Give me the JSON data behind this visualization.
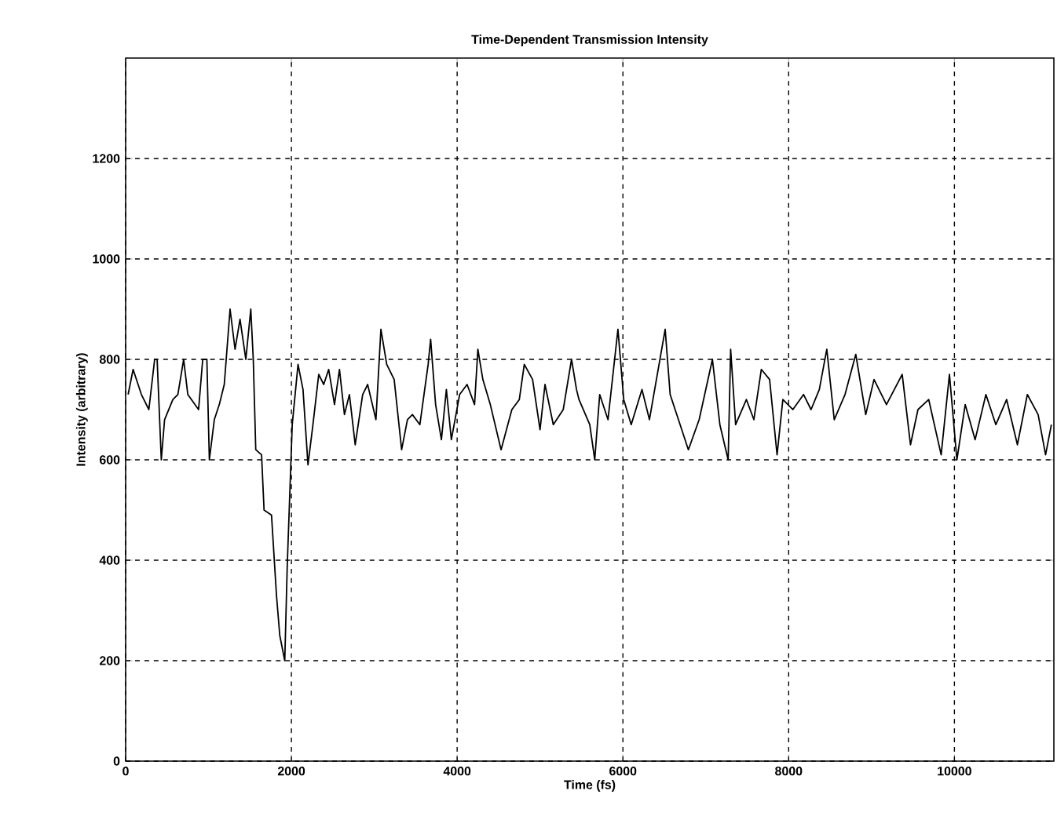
{
  "chart_data": {
    "type": "line",
    "title": "Time-Dependent Transmission Intensity",
    "xlabel": "Time (fs)",
    "ylabel": "Intensity (arbitrary)",
    "x": [
      30,
      90,
      190,
      280,
      350,
      380,
      430,
      470,
      570,
      630,
      700,
      750,
      880,
      930,
      980,
      1010,
      1070,
      1130,
      1190,
      1260,
      1320,
      1380,
      1450,
      1510,
      1540,
      1570,
      1640,
      1670,
      1760,
      1820,
      1860,
      1920,
      1950,
      2010,
      2080,
      2140,
      2200,
      2260,
      2330,
      2390,
      2450,
      2520,
      2580,
      2640,
      2700,
      2770,
      2860,
      2920,
      3020,
      3080,
      3150,
      3240,
      3330,
      3400,
      3460,
      3550,
      3650,
      3680,
      3740,
      3810,
      3870,
      3930,
      4030,
      4120,
      4210,
      4250,
      4310,
      4400,
      4530,
      4660,
      4750,
      4810,
      4910,
      5000,
      5060,
      5160,
      5280,
      5380,
      5440,
      5470,
      5600,
      5660,
      5720,
      5820,
      5940,
      6010,
      6100,
      6230,
      6320,
      6510,
      6570,
      6670,
      6790,
      6920,
      7080,
      7170,
      7270,
      7300,
      7360,
      7490,
      7580,
      7670,
      7770,
      7860,
      7930,
      8050,
      8180,
      8270,
      8370,
      8460,
      8550,
      8680,
      8810,
      8930,
      9030,
      9180,
      9370,
      9470,
      9560,
      9690,
      9840,
      9940,
      10030,
      10130,
      10250,
      10380,
      10500,
      10630,
      10760,
      10880,
      11010,
      11100,
      11170
    ],
    "series": [
      {
        "color": "#000000",
        "values": [
          730,
          780,
          730,
          700,
          800,
          800,
          600,
          680,
          720,
          730,
          800,
          730,
          700,
          800,
          800,
          600,
          680,
          710,
          750,
          900,
          820,
          880,
          800,
          900,
          800,
          620,
          610,
          500,
          490,
          330,
          250,
          200,
          390,
          670,
          790,
          740,
          590,
          670,
          770,
          750,
          780,
          710,
          780,
          690,
          730,
          630,
          730,
          750,
          680,
          860,
          790,
          760,
          620,
          680,
          690,
          670,
          790,
          840,
          710,
          640,
          740,
          640,
          730,
          750,
          710,
          820,
          760,
          710,
          620,
          700,
          720,
          790,
          760,
          660,
          750,
          670,
          700,
          800,
          740,
          720,
          670,
          600,
          730,
          680,
          860,
          720,
          670,
          740,
          680,
          860,
          730,
          680,
          620,
          680,
          800,
          670,
          600,
          820,
          670,
          720,
          680,
          780,
          760,
          610,
          720,
          700,
          730,
          700,
          740,
          820,
          680,
          730,
          810,
          690,
          760,
          710,
          770,
          630,
          700,
          720,
          610,
          770,
          600,
          710,
          640,
          730,
          670,
          720,
          630,
          730,
          690,
          610,
          670
        ]
      }
    ],
    "xlim": [
      0,
      11200
    ],
    "ylim": [
      0,
      1400
    ],
    "xticks": [
      0,
      2000,
      4000,
      6000,
      8000,
      10000
    ],
    "yticks": [
      0,
      200,
      400,
      600,
      800,
      1000,
      1200
    ],
    "grid": true,
    "line_style": "solid"
  }
}
